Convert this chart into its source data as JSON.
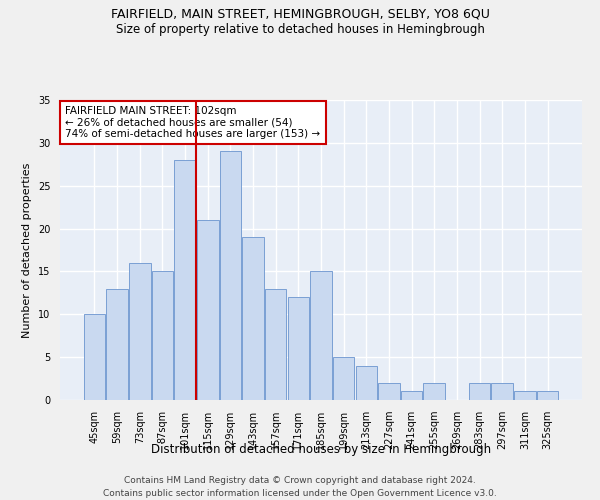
{
  "title": "FAIRFIELD, MAIN STREET, HEMINGBROUGH, SELBY, YO8 6QU",
  "subtitle": "Size of property relative to detached houses in Hemingbrough",
  "xlabel": "Distribution of detached houses by size in Hemingbrough",
  "ylabel": "Number of detached properties",
  "categories": [
    "45sqm",
    "59sqm",
    "73sqm",
    "87sqm",
    "101sqm",
    "115sqm",
    "129sqm",
    "143sqm",
    "157sqm",
    "171sqm",
    "185sqm",
    "199sqm",
    "213sqm",
    "227sqm",
    "241sqm",
    "255sqm",
    "269sqm",
    "283sqm",
    "297sqm",
    "311sqm",
    "325sqm"
  ],
  "values": [
    10,
    13,
    16,
    15,
    28,
    21,
    29,
    19,
    13,
    12,
    15,
    5,
    4,
    2,
    1,
    2,
    0,
    2,
    2,
    1,
    1
  ],
  "bar_color": "#c9d9f0",
  "bar_edge_color": "#7a9fd4",
  "vline_x_index": 4,
  "vline_color": "#cc0000",
  "annotation_text": "FAIRFIELD MAIN STREET: 102sqm\n← 26% of detached houses are smaller (54)\n74% of semi-detached houses are larger (153) →",
  "annotation_box_color": "#ffffff",
  "annotation_box_edge_color": "#cc0000",
  "ylim": [
    0,
    35
  ],
  "yticks": [
    0,
    5,
    10,
    15,
    20,
    25,
    30,
    35
  ],
  "footer": "Contains HM Land Registry data © Crown copyright and database right 2024.\nContains public sector information licensed under the Open Government Licence v3.0.",
  "bg_color": "#e8eef7",
  "grid_color": "#ffffff",
  "fig_bg_color": "#f0f0f0",
  "title_fontsize": 9,
  "subtitle_fontsize": 8.5,
  "xlabel_fontsize": 8.5,
  "ylabel_fontsize": 8,
  "tick_fontsize": 7,
  "footer_fontsize": 6.5,
  "annotation_fontsize": 7.5
}
